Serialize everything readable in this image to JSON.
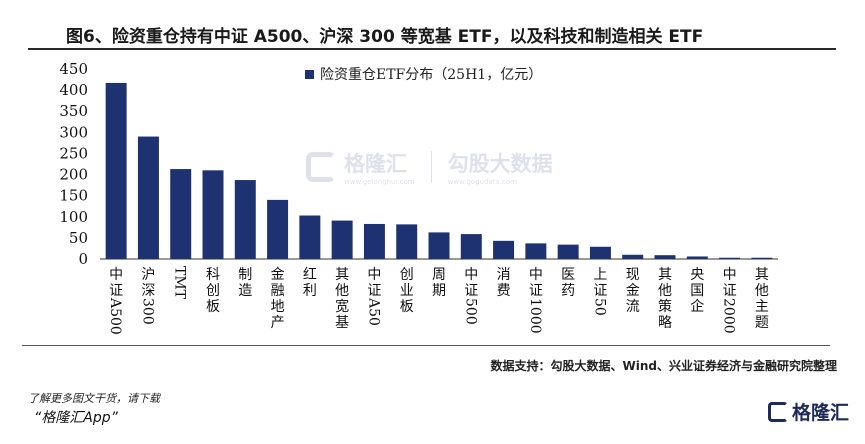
{
  "header": {
    "title": "图6、险资重仓持有中证 A500、沪深 300 等宽基 ETF，以及科技和制造相关 ETF"
  },
  "chart_data": {
    "type": "bar",
    "legend": "险资重仓ETF分布（25H1，亿元）",
    "legend_position": "top",
    "bar_color": "#1e3272",
    "ylim": [
      0,
      450
    ],
    "yticks": [
      0,
      50,
      100,
      150,
      200,
      250,
      300,
      350,
      400,
      450
    ],
    "grid": false,
    "categories": [
      "中证A500",
      "沪深300",
      "TMT",
      "科创板",
      "制造",
      "金融地产",
      "红利",
      "其他宽基",
      "中证A50",
      "创业板",
      "周期",
      "中证500",
      "消费",
      "中证1000",
      "医药",
      "上证50",
      "现金流",
      "其他策略",
      "央国企",
      "中证2000",
      "其他主题"
    ],
    "values": [
      417,
      290,
      213,
      210,
      187,
      140,
      103,
      91,
      83,
      82,
      63,
      59,
      43,
      37,
      34,
      29,
      10,
      9,
      6,
      3,
      3
    ]
  },
  "source": "数据支持：勾股大数据、Wind、兴业证券经济与金融研究院整理",
  "watermark": {
    "brand": "格隆汇",
    "brand_url": "www.gelonghui.com",
    "partner": "勾股大数据",
    "partner_url": "www.gogudata.com"
  },
  "footer": {
    "line1": "了解更多图文干货，请下载",
    "line2": "“格隆汇App”",
    "logo_text": "格隆汇"
  },
  "icons": {
    "brand_logo": "gelonghui-logo-icon",
    "watermark_logo": "gelonghui-watermark-icon"
  }
}
